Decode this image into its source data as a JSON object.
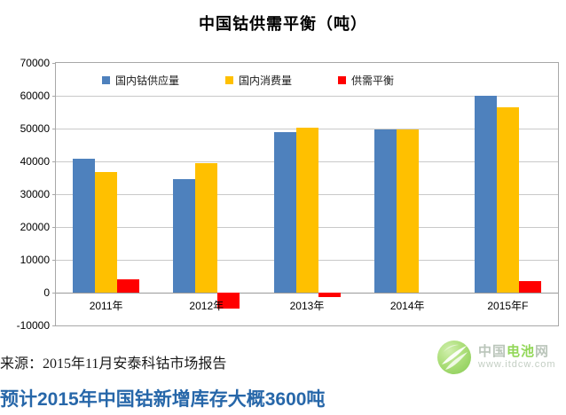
{
  "chart_data": {
    "type": "bar",
    "title": "中国钴供需平衡（吨）",
    "categories": [
      "2011年",
      "2012年",
      "2013年",
      "2014年",
      "2015年F"
    ],
    "series": [
      {
        "name": "国内钴供应量",
        "color": "#4E81BD",
        "values": [
          40700,
          34600,
          48900,
          49800,
          60100
        ]
      },
      {
        "name": "国内消费量",
        "color": "#FFC000",
        "values": [
          36700,
          39500,
          50200,
          49700,
          56500
        ]
      },
      {
        "name": "供需平衡",
        "color": "#FF0000",
        "values": [
          4000,
          -4900,
          -1300,
          100,
          3600
        ]
      }
    ],
    "ylim": [
      -10000,
      70000
    ],
    "ytick_step": 10000,
    "grid": "horizontal",
    "legend_position": "top-inside",
    "xlabel": "",
    "ylabel": ""
  },
  "colors": {
    "gridline": "#c9c9c9",
    "zero_line": "#9a9a9a",
    "plot_border": "#a8a8a8",
    "headline_blue": "#2767A9",
    "logo_green": "#7fd13b",
    "logo_gray": "#aebbae"
  },
  "source_text": "来源：2015年11月安泰科钴市场报告",
  "headline": {
    "text": "预计2015年中国钴新增库存大概3600吨"
  },
  "logo": {
    "name_prefix": "中国",
    "name_highlight": "电池",
    "name_suffix": "网",
    "url": "www.itdcw.com"
  }
}
